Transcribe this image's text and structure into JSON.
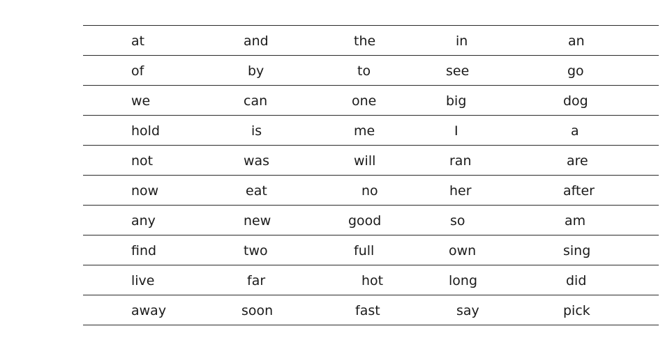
{
  "word_grid": {
    "rows": [
      [
        "at",
        "and",
        "the",
        "in",
        "an"
      ],
      [
        "of",
        "by",
        "to",
        "see",
        "go"
      ],
      [
        "we",
        "can",
        "one",
        "big",
        "dog"
      ],
      [
        "hold",
        "is",
        "me",
        "I",
        "a"
      ],
      [
        "not",
        "was",
        "will",
        "ran",
        "are"
      ],
      [
        "now",
        "eat",
        "no",
        "her",
        "after"
      ],
      [
        "any",
        "new",
        "good",
        "so",
        "am"
      ],
      [
        "find",
        "two",
        "full",
        "own",
        "sing"
      ],
      [
        "live",
        "far",
        "hot",
        "long",
        "did"
      ],
      [
        "away",
        "soon",
        "fast",
        "say",
        "pick"
      ]
    ]
  }
}
